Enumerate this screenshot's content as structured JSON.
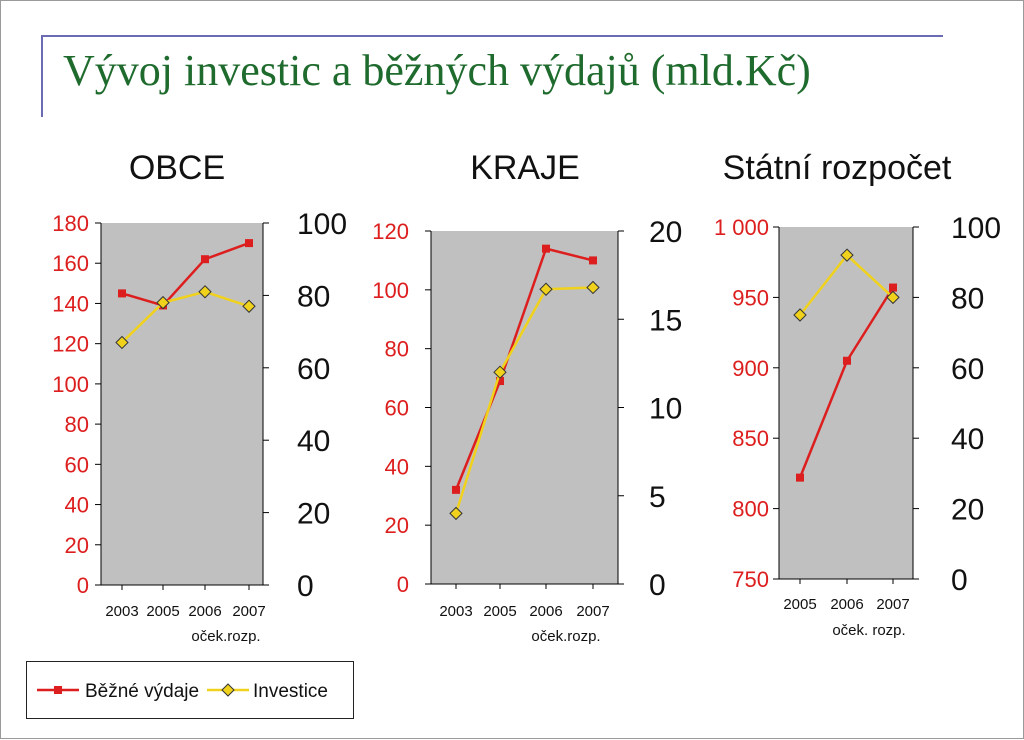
{
  "slide": {
    "title": "Vývoj investic a běžných výdajů (mld.Kč)"
  },
  "colors": {
    "expenses": "#dd1e1e",
    "investment": "#f0d21c",
    "plot_background": "#c0c0c0",
    "title": "#1f6b2e"
  },
  "legend": {
    "expenses_label": "Běžné výdaje",
    "investment_label": "Investice"
  },
  "chart_data": [
    {
      "type": "line",
      "title": "OBCE",
      "categories": [
        "2003",
        "2005",
        "2006",
        "2007"
      ],
      "category_note": "oček.rozp.",
      "y_left": {
        "ticks": [
          "0",
          "20",
          "40",
          "60",
          "80",
          "100",
          "120",
          "140",
          "160",
          "180"
        ],
        "range": [
          0,
          180
        ]
      },
      "y_right": {
        "ticks": [
          "0",
          "20",
          "40",
          "60",
          "80",
          "100"
        ],
        "range": [
          0,
          100
        ]
      },
      "series": [
        {
          "name": "Běžné výdaje",
          "axis": "left",
          "values": [
            145,
            139,
            162,
            170
          ]
        },
        {
          "name": "Investice",
          "axis": "right",
          "values": [
            67,
            78,
            81,
            77
          ]
        }
      ]
    },
    {
      "type": "line",
      "title": "KRAJE",
      "categories": [
        "2003",
        "2005",
        "2006",
        "2007"
      ],
      "category_note": "oček.rozp.",
      "y_left": {
        "ticks": [
          "0",
          "20",
          "40",
          "60",
          "80",
          "100",
          "120"
        ],
        "range": [
          0,
          120
        ]
      },
      "y_right": {
        "ticks": [
          "0",
          "5",
          "10",
          "15",
          "20"
        ],
        "range": [
          0,
          20
        ]
      },
      "series": [
        {
          "name": "Běžné výdaje",
          "axis": "left",
          "values": [
            32,
            69,
            114,
            110
          ]
        },
        {
          "name": "Investice",
          "axis": "right",
          "values": [
            4,
            12,
            16.7,
            16.8
          ]
        }
      ]
    },
    {
      "type": "line",
      "title": "Státní rozpočet",
      "categories": [
        "2005",
        "2006",
        "2007"
      ],
      "category_note": "oček. rozp.",
      "y_left": {
        "ticks": [
          "750",
          "800",
          "850",
          "900",
          "950",
          "1 000"
        ],
        "range": [
          750,
          1000
        ]
      },
      "y_right": {
        "ticks": [
          "0",
          "20",
          "40",
          "60",
          "80",
          "100"
        ],
        "range": [
          0,
          100
        ]
      },
      "series": [
        {
          "name": "Běžné výdaje",
          "axis": "left",
          "values": [
            822,
            905,
            957
          ]
        },
        {
          "name": "Investice",
          "axis": "right",
          "values": [
            75,
            92,
            80
          ]
        }
      ]
    }
  ]
}
